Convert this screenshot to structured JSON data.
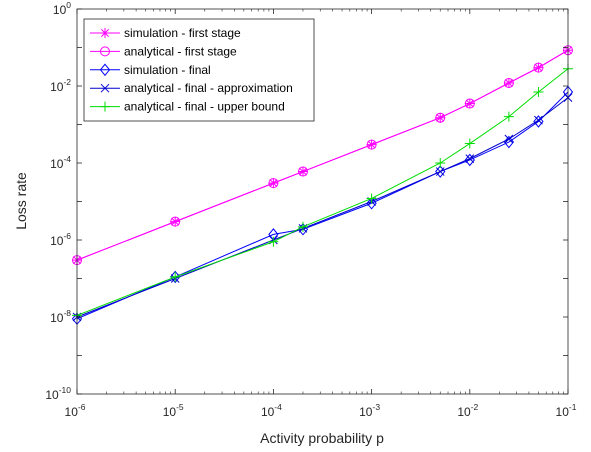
{
  "chart_data": {
    "type": "line",
    "title": "",
    "xlabel": "Activity probability p",
    "ylabel": "Loss rate",
    "xscale": "log",
    "yscale": "log",
    "xlim": [
      1e-06,
      0.1
    ],
    "ylim": [
      1e-10,
      1
    ],
    "grid": false,
    "legend_position": "top-left",
    "x_ticks": [
      {
        "base": "10",
        "exp": "-6",
        "value": 1e-06
      },
      {
        "base": "10",
        "exp": "-5",
        "value": 1e-05
      },
      {
        "base": "10",
        "exp": "-4",
        "value": 0.0001
      },
      {
        "base": "10",
        "exp": "-3",
        "value": 0.001
      },
      {
        "base": "10",
        "exp": "-2",
        "value": 0.01
      },
      {
        "base": "10",
        "exp": "-1",
        "value": 0.1
      }
    ],
    "y_ticks": [
      {
        "base": "10",
        "exp": "-10",
        "value": 1e-10
      },
      {
        "base": "10",
        "exp": "-8",
        "value": 1e-08
      },
      {
        "base": "10",
        "exp": "-6",
        "value": 1e-06
      },
      {
        "base": "10",
        "exp": "-4",
        "value": 0.0001
      },
      {
        "base": "10",
        "exp": "-2",
        "value": 0.01
      },
      {
        "base": "10",
        "exp": "0",
        "value": 1
      }
    ],
    "series": [
      {
        "name": "simulation - first stage",
        "color": "#ff00ff",
        "marker": "asterisk",
        "x": [
          1e-06,
          1e-05,
          0.0001,
          0.0002,
          0.001,
          0.005,
          0.01,
          0.025,
          0.05,
          0.1
        ],
        "y": [
          3e-07,
          3e-06,
          3e-05,
          6e-05,
          0.0003,
          0.0015,
          0.0035,
          0.012,
          0.03,
          0.085
        ]
      },
      {
        "name": "analytical - first stage",
        "color": "#ff00ff",
        "marker": "circle",
        "x": [
          1e-06,
          1e-05,
          0.0001,
          0.0002,
          0.001,
          0.005,
          0.01,
          0.025,
          0.05,
          0.1
        ],
        "y": [
          3e-07,
          3e-06,
          3e-05,
          6e-05,
          0.0003,
          0.0015,
          0.0035,
          0.012,
          0.03,
          0.085
        ]
      },
      {
        "name": "simulation - final",
        "color": "#0000ff",
        "marker": "diamond",
        "x": [
          1e-06,
          1e-05,
          0.0001,
          0.0002,
          0.001,
          0.005,
          0.01,
          0.025,
          0.05,
          0.1
        ],
        "y": [
          9e-09,
          1.1e-07,
          1.4e-06,
          1.9e-06,
          9e-06,
          6e-05,
          0.00012,
          0.00035,
          0.0012,
          0.007
        ]
      },
      {
        "name": "analytical - final - approximation",
        "color": "#0000cc",
        "marker": "x",
        "x": [
          1e-06,
          1e-05,
          0.0001,
          0.0002,
          0.001,
          0.005,
          0.01,
          0.025,
          0.05,
          0.1
        ],
        "y": [
          1e-08,
          1e-07,
          1e-06,
          2e-06,
          1e-05,
          6e-05,
          0.00013,
          0.00042,
          0.0013,
          0.005
        ]
      },
      {
        "name": "analytical - final - upper bound",
        "color": "#00dd00",
        "marker": "plus",
        "x": [
          1e-06,
          1e-05,
          0.0001,
          0.0002,
          0.001,
          0.005,
          0.01,
          0.025,
          0.05,
          0.1
        ],
        "y": [
          1.1e-08,
          1.1e-07,
          9e-07,
          2.2e-06,
          1.2e-05,
          0.0001,
          0.00032,
          0.0016,
          0.007,
          0.028
        ]
      }
    ]
  }
}
